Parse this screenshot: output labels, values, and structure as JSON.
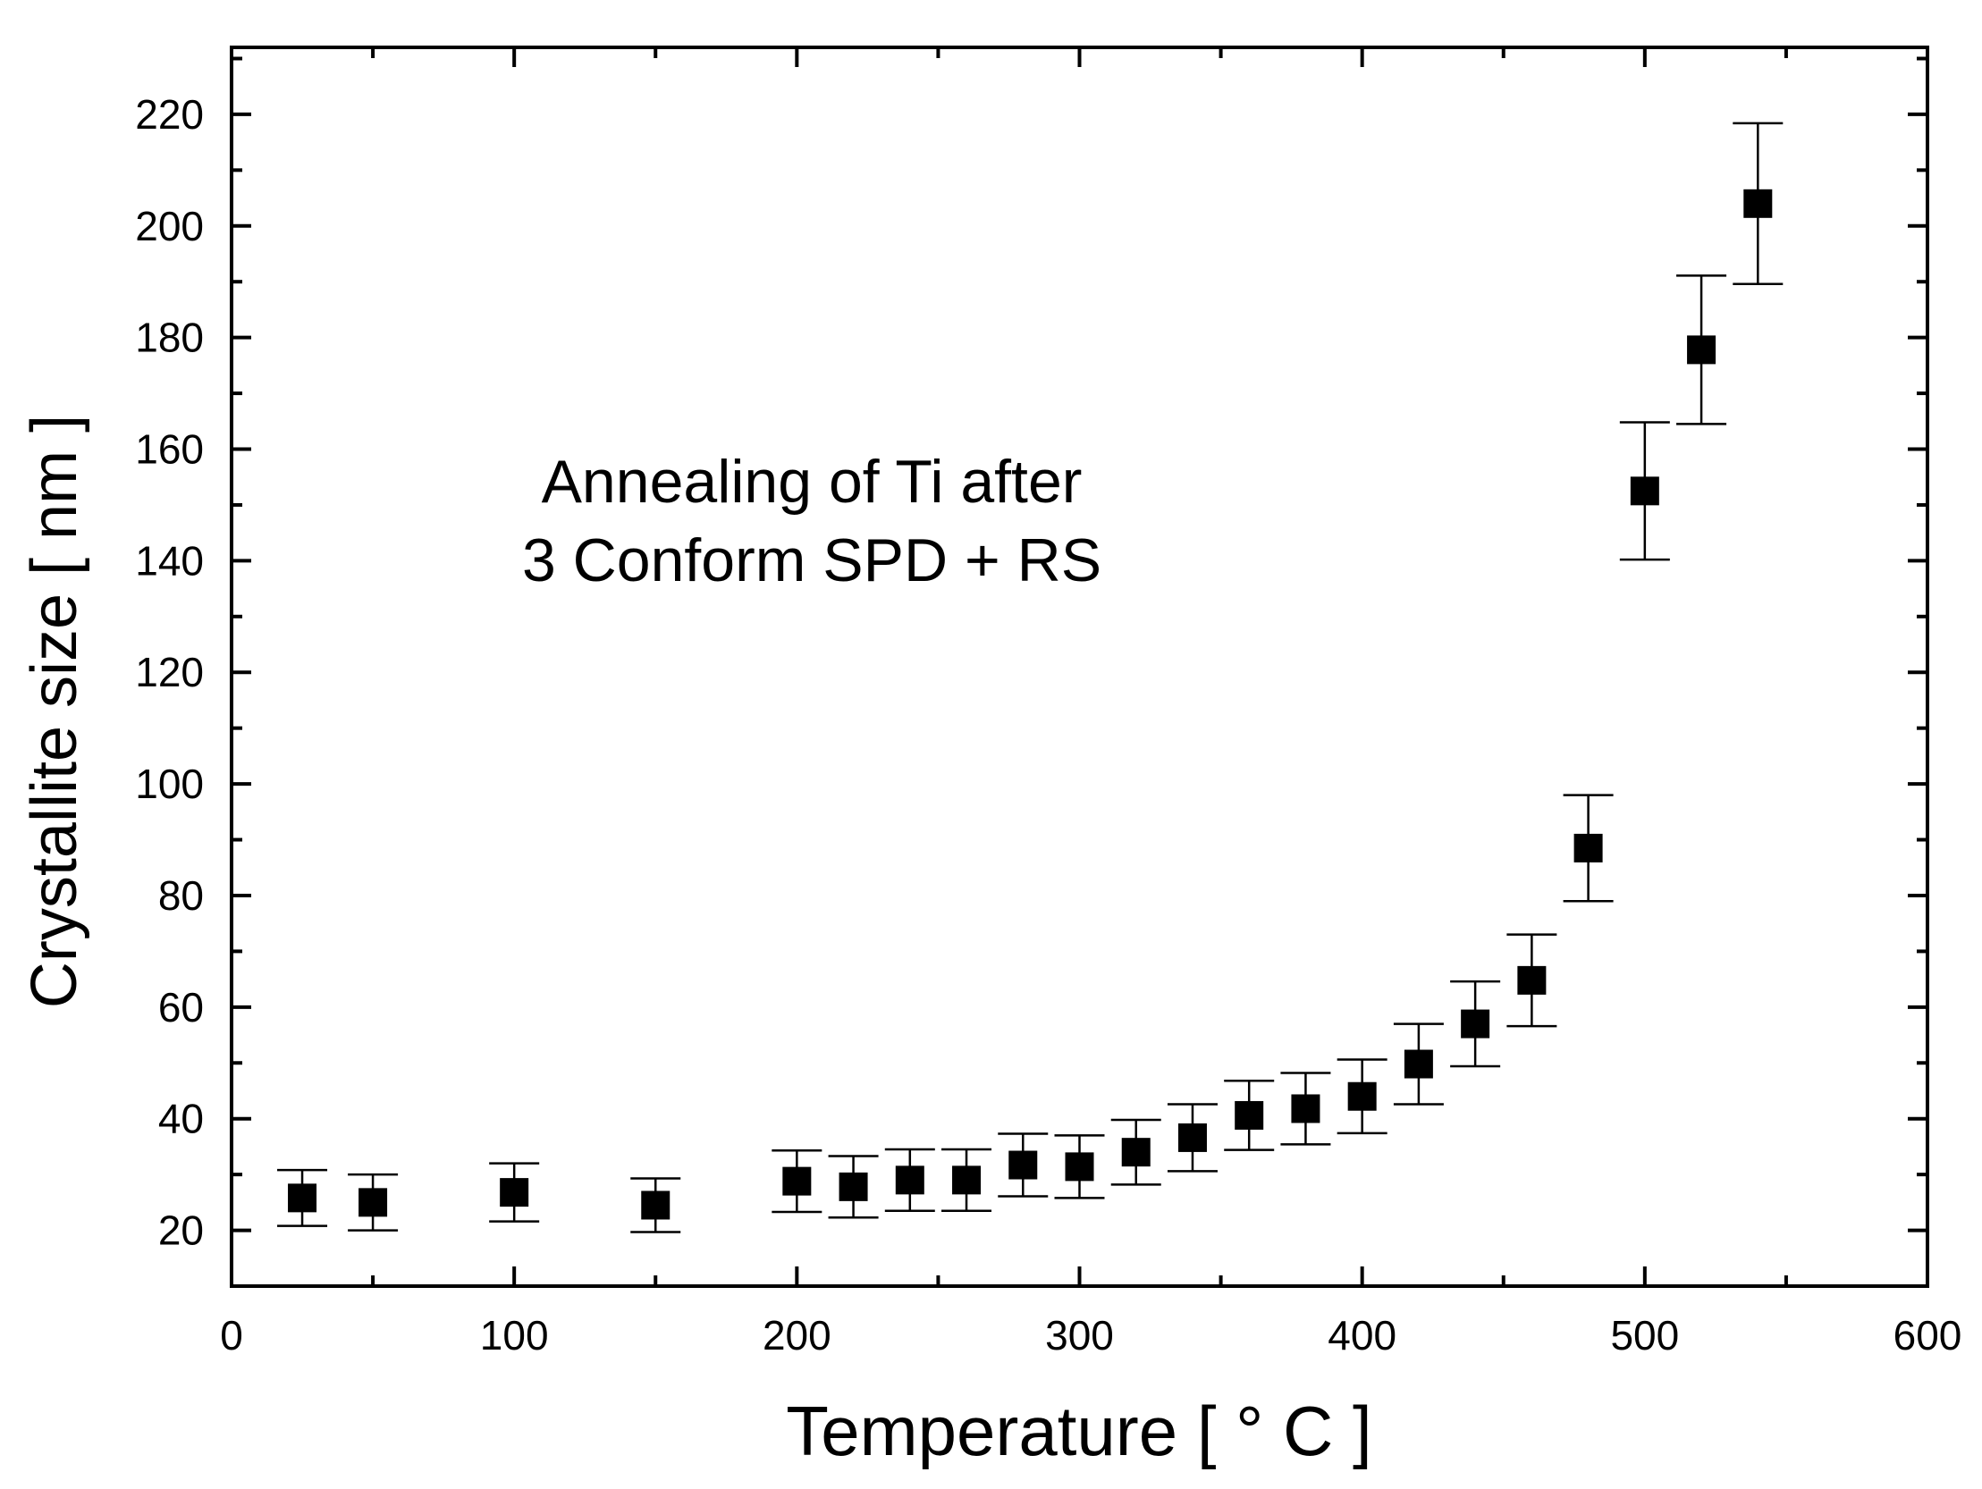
{
  "chart_data": {
    "type": "scatter",
    "annotation": [
      "Annealing of Ti after",
      "3 Conform SPD + RS"
    ],
    "xlabel": "Temperature [ ° C ]",
    "ylabel": "Crystallite size [ nm ]",
    "xlim": [
      0,
      600
    ],
    "ylim": [
      10,
      232
    ],
    "xticks": [
      0,
      100,
      200,
      300,
      400,
      500,
      600
    ],
    "yticks": [
      20,
      40,
      60,
      80,
      100,
      120,
      140,
      160,
      180,
      200,
      220
    ],
    "grid": false,
    "marker": "square",
    "series": [
      {
        "name": "Crystallite size",
        "points": [
          {
            "x": 25,
            "y": 25.8,
            "err": 5
          },
          {
            "x": 50,
            "y": 25.0,
            "err": 5
          },
          {
            "x": 100,
            "y": 26.8,
            "err": 5.2
          },
          {
            "x": 150,
            "y": 24.5,
            "err": 4.8
          },
          {
            "x": 200,
            "y": 28.8,
            "err": 5.5
          },
          {
            "x": 220,
            "y": 27.8,
            "err": 5.5
          },
          {
            "x": 240,
            "y": 29.0,
            "err": 5.5
          },
          {
            "x": 260,
            "y": 29.0,
            "err": 5.5
          },
          {
            "x": 280,
            "y": 31.7,
            "err": 5.6
          },
          {
            "x": 300,
            "y": 31.4,
            "err": 5.6
          },
          {
            "x": 320,
            "y": 34.0,
            "err": 5.8
          },
          {
            "x": 340,
            "y": 36.6,
            "err": 6
          },
          {
            "x": 360,
            "y": 40.6,
            "err": 6.2
          },
          {
            "x": 380,
            "y": 41.8,
            "err": 6.4
          },
          {
            "x": 400,
            "y": 44.0,
            "err": 6.6
          },
          {
            "x": 420,
            "y": 49.8,
            "err": 7.2
          },
          {
            "x": 440,
            "y": 57.0,
            "err": 7.6
          },
          {
            "x": 460,
            "y": 64.8,
            "err": 8.2
          },
          {
            "x": 480,
            "y": 88.5,
            "err": 9.5
          },
          {
            "x": 500,
            "y": 152.5,
            "err": 12.3
          },
          {
            "x": 520,
            "y": 177.8,
            "err": 13.3
          },
          {
            "x": 540,
            "y": 204.0,
            "err": 14.4
          }
        ]
      }
    ]
  }
}
